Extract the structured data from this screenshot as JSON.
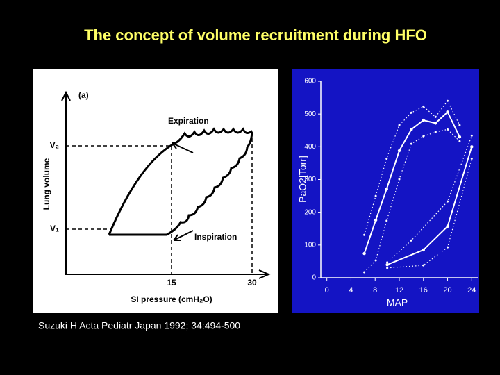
{
  "slide": {
    "title": "The concept of volume recruitment during HFO",
    "citation": "Suzuki H   Acta Pediatr Japan 1992; 34:494-500"
  },
  "left_figure": {
    "panel": "(a)",
    "y_label": "Lung volume",
    "v2": "V₂",
    "v1": "V₁",
    "expiration": "Expiration",
    "inspiration": "Inspiration",
    "x_tick_1": "15",
    "x_tick_2": "30",
    "x_label": "SI pressure (cmH₂O)"
  },
  "chart_data": {
    "type": "line",
    "x_label": "MAP",
    "y_label": "PaO2[Torr]",
    "xlim": [
      -1,
      25
    ],
    "xticks": [
      0,
      4,
      8,
      12,
      16,
      20,
      24
    ],
    "ylim": [
      0,
      600
    ],
    "yticks": [
      0,
      100,
      200,
      300,
      400,
      500,
      600
    ],
    "series": [
      {
        "color": "#ffffff",
        "style": "solid",
        "x": [
          6.2,
          8.1,
          9.9,
          12,
          14,
          16,
          18,
          20,
          22
        ],
        "values": [
          74,
          176,
          271,
          388,
          453,
          481,
          472,
          506,
          430
        ]
      },
      {
        "color": "#ffffff",
        "style": "dotted",
        "x": [
          6.2,
          8.1,
          9.9,
          12,
          14,
          16,
          18,
          20,
          22
        ],
        "values": [
          131,
          250,
          364,
          466,
          504,
          523,
          491,
          540,
          466
        ]
      },
      {
        "color": "#ffffff",
        "style": "dotted",
        "x": [
          6.2,
          8.1,
          9.9,
          12,
          14,
          16,
          18,
          20,
          22
        ],
        "values": [
          17,
          53,
          174,
          301,
          409,
          432,
          445,
          453,
          417
        ]
      },
      {
        "color": "#ffffff",
        "style": "solid",
        "x": [
          10,
          16,
          20,
          24
        ],
        "values": [
          40,
          85,
          157,
          400
        ]
      },
      {
        "color": "#ffffff",
        "style": "dotted",
        "x": [
          10,
          14,
          20,
          24
        ],
        "values": [
          47,
          114,
          233,
          434
        ]
      },
      {
        "color": "#ffffff",
        "style": "dotted",
        "x": [
          10,
          16,
          20,
          24
        ],
        "values": [
          30,
          38,
          93,
          364
        ]
      }
    ]
  }
}
